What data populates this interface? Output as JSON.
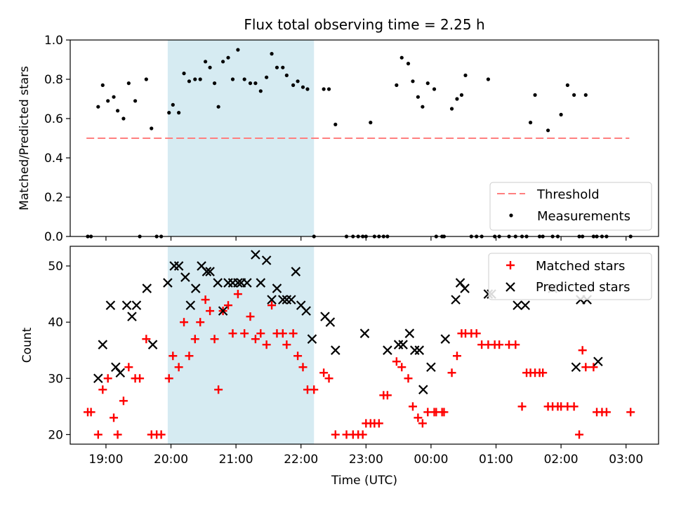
{
  "chart_data": [
    {
      "type": "scatter",
      "title": "Flux total observing time = 2.25 h",
      "ylabel": "Matched/Predicted stars",
      "ylim": [
        0,
        1.0
      ],
      "yticks": [
        "0.0",
        "0.2",
        "0.4",
        "0.6",
        "0.8",
        "1.0"
      ],
      "xlim_hours": [
        18.45,
        27.5
      ],
      "highlight_span_hours": [
        19.95,
        22.2
      ],
      "highlight_color": "#add8e6",
      "threshold": {
        "name": "Threshold",
        "value": 0.5,
        "x_hours": [
          18.7,
          27.05
        ],
        "color": "#ff7f7f",
        "style": "dashed"
      },
      "legend": {
        "position": "lower-right",
        "entries": [
          "Threshold",
          "Measurements"
        ]
      },
      "series": [
        {
          "name": "Measurements",
          "color": "#000000",
          "marker": "dot",
          "x_hours": [
            18.72,
            18.77,
            18.88,
            18.95,
            19.03,
            19.12,
            19.18,
            19.27,
            19.35,
            19.45,
            19.52,
            19.62,
            19.7,
            19.78,
            19.85,
            19.97,
            20.03,
            20.12,
            20.2,
            20.28,
            20.37,
            20.45,
            20.53,
            20.6,
            20.67,
            20.73,
            20.8,
            20.88,
            20.95,
            21.03,
            21.13,
            21.22,
            21.3,
            21.38,
            21.47,
            21.55,
            21.63,
            21.72,
            21.78,
            21.88,
            21.95,
            22.03,
            22.1,
            22.2,
            22.35,
            22.43,
            22.53,
            22.7,
            22.8,
            22.88,
            22.95,
            23.0,
            23.07,
            23.13,
            23.2,
            23.27,
            23.33,
            23.47,
            23.55,
            23.65,
            23.72,
            23.8,
            23.87,
            23.95,
            24.05,
            24.08,
            24.17,
            24.2,
            24.32,
            24.4,
            24.47,
            24.53,
            24.62,
            24.7,
            24.78,
            24.88,
            24.98,
            25.05,
            25.2,
            25.3,
            25.4,
            25.47,
            25.53,
            25.6,
            25.67,
            25.72,
            25.8,
            25.87,
            25.95,
            26.0,
            26.1,
            26.2,
            26.28,
            26.33,
            26.38,
            26.5,
            26.55,
            26.63,
            26.7,
            27.07
          ],
          "y": [
            0,
            0,
            0.66,
            0.77,
            0.69,
            0.71,
            0.64,
            0.6,
            0.78,
            0.69,
            0,
            0.8,
            0.55,
            0,
            0,
            0.63,
            0.67,
            0.63,
            0.83,
            0.79,
            0.8,
            0.8,
            0.89,
            0.86,
            0.78,
            0.66,
            0.89,
            0.91,
            0.8,
            0.95,
            0.8,
            0.78,
            0.78,
            0.74,
            0.81,
            0.93,
            0.86,
            0.86,
            0.82,
            0.77,
            0.79,
            0.76,
            0.75,
            0,
            0.75,
            0.75,
            0.57,
            0,
            0,
            0,
            0,
            0,
            0.58,
            0,
            0,
            0,
            0,
            0.77,
            0.91,
            0.88,
            0.79,
            0.71,
            0.66,
            0.78,
            0.75,
            0,
            0,
            0,
            0.65,
            0.7,
            0.72,
            0.82,
            0,
            0,
            0,
            0.8,
            0,
            0,
            0,
            0,
            0,
            0,
            0.58,
            0.72,
            0,
            0,
            0.54,
            0,
            0,
            0.62,
            0.77,
            0.72,
            0,
            0,
            0.72,
            0,
            0,
            0,
            0,
            0
          ]
        }
      ]
    },
    {
      "type": "scatter",
      "xlabel": "Time (UTC)",
      "ylabel": "Count",
      "ylim": [
        18.3,
        53.5
      ],
      "yticks": [
        "20",
        "30",
        "40",
        "50"
      ],
      "xticks": [
        "19:00",
        "20:00",
        "21:00",
        "22:00",
        "23:00",
        "00:00",
        "01:00",
        "02:00",
        "03:00"
      ],
      "xlim_hours": [
        18.45,
        27.5
      ],
      "highlight_span_hours": [
        19.95,
        22.2
      ],
      "highlight_color": "#add8e6",
      "legend": {
        "position": "top-right",
        "entries": [
          "Matched stars",
          "Predicted stars"
        ]
      },
      "series": [
        {
          "name": "Matched stars",
          "color": "#ff0000",
          "marker": "plus",
          "x_hours": [
            18.72,
            18.77,
            18.88,
            18.95,
            19.03,
            19.12,
            19.18,
            19.27,
            19.35,
            19.45,
            19.52,
            19.62,
            19.7,
            19.78,
            19.85,
            19.97,
            20.03,
            20.12,
            20.2,
            20.28,
            20.37,
            20.45,
            20.53,
            20.6,
            20.67,
            20.73,
            20.8,
            20.88,
            20.95,
            21.03,
            21.13,
            21.22,
            21.3,
            21.38,
            21.47,
            21.55,
            21.63,
            21.72,
            21.78,
            21.88,
            21.95,
            22.03,
            22.1,
            22.2,
            22.35,
            22.43,
            22.53,
            22.7,
            22.8,
            22.88,
            22.95,
            23.0,
            23.07,
            23.13,
            23.2,
            23.27,
            23.33,
            23.47,
            23.55,
            23.65,
            23.72,
            23.8,
            23.87,
            23.95,
            24.05,
            24.08,
            24.17,
            24.2,
            24.32,
            24.4,
            24.47,
            24.53,
            24.62,
            24.7,
            24.78,
            24.88,
            24.98,
            25.05,
            25.2,
            25.3,
            25.4,
            25.47,
            25.53,
            25.6,
            25.67,
            25.72,
            25.8,
            25.87,
            25.95,
            26.0,
            26.1,
            26.2,
            26.28,
            26.33,
            26.38,
            26.5,
            26.55,
            26.63,
            26.7,
            27.07
          ],
          "y": [
            24,
            24,
            20,
            28,
            30,
            23,
            20,
            26,
            32,
            30,
            30,
            37,
            20,
            20,
            20,
            30,
            34,
            32,
            40,
            34,
            37,
            40,
            44,
            42,
            37,
            28,
            42,
            43,
            38,
            45,
            38,
            41,
            37,
            38,
            36,
            43,
            38,
            38,
            36,
            38,
            34,
            32,
            28,
            28,
            31,
            30,
            20,
            20,
            20,
            20,
            20,
            22,
            22,
            22,
            22,
            27,
            27,
            33,
            32,
            30,
            25,
            23,
            22,
            24,
            24,
            24,
            24,
            24,
            31,
            34,
            38,
            38,
            38,
            38,
            36,
            36,
            36,
            36,
            36,
            36,
            25,
            31,
            31,
            31,
            31,
            31,
            25,
            25,
            25,
            25,
            25,
            25,
            20,
            35,
            32,
            32,
            24,
            24,
            24,
            24
          ]
        },
        {
          "name": "Predicted stars",
          "color": "#000000",
          "marker": "cross",
          "x_hours": [
            18.88,
            18.95,
            19.07,
            19.15,
            19.22,
            19.32,
            19.4,
            19.47,
            19.63,
            19.72,
            19.95,
            20.05,
            20.12,
            20.22,
            20.3,
            20.38,
            20.47,
            20.55,
            20.6,
            20.72,
            20.8,
            20.88,
            20.95,
            21.03,
            21.08,
            21.17,
            21.3,
            21.38,
            21.47,
            21.55,
            21.63,
            21.72,
            21.78,
            21.85,
            21.92,
            22.0,
            22.08,
            22.17,
            22.37,
            22.45,
            22.53,
            22.98,
            23.33,
            23.5,
            23.57,
            23.67,
            23.75,
            23.82,
            23.88,
            24.0,
            24.22,
            24.38,
            24.45,
            24.52,
            24.88,
            24.93,
            25.33,
            25.45,
            25.87,
            26.23,
            26.3,
            26.4,
            26.57
          ],
          "y": [
            30,
            36,
            43,
            32,
            31,
            43,
            41,
            43,
            46,
            36,
            47,
            50,
            50,
            48,
            43,
            46,
            50,
            49,
            49,
            47,
            42,
            47,
            47,
            47,
            47,
            47,
            52,
            47,
            51,
            44,
            46,
            44,
            44,
            44,
            49,
            43,
            42,
            37,
            41,
            40,
            35,
            38,
            35,
            36,
            36,
            38,
            35,
            35,
            28,
            32,
            37,
            44,
            47,
            46,
            45,
            45,
            43,
            43,
            46,
            32,
            44,
            44,
            33
          ]
        }
      ]
    }
  ]
}
